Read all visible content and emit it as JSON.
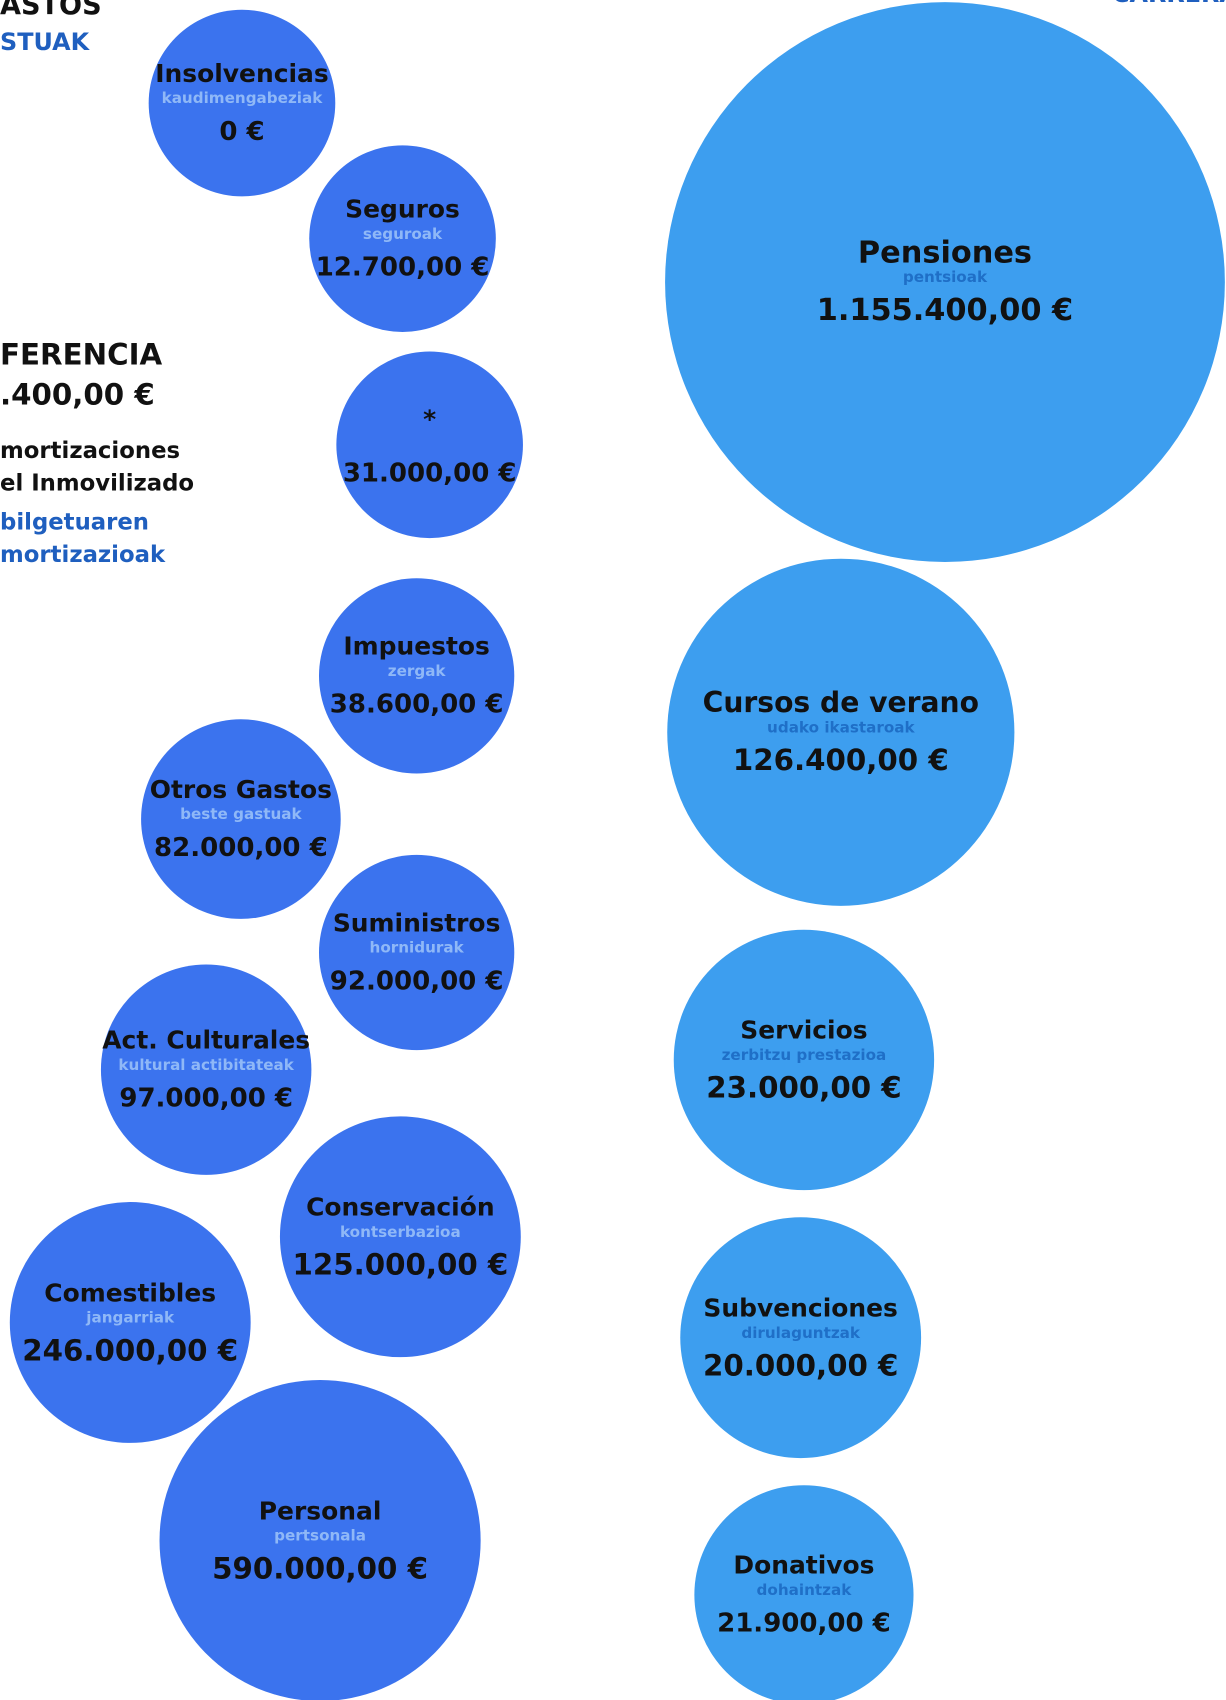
{
  "header": {
    "title": "ASTOS",
    "subtitle": "STUAK",
    "right_title": "CARRERA"
  },
  "side": {
    "heading": "FERENCIA",
    "amount": ".400,00 €",
    "lines": [
      "mortizaciones",
      "el Inmovilizado"
    ],
    "lines_eu": [
      "bilgetuaren",
      "mortizazioak"
    ]
  },
  "expenses": [
    {
      "label": "Insolvencias",
      "sublabel": "kaudimengabeziak",
      "amount": "0 €"
    },
    {
      "label": "Seguros",
      "sublabel": "seguroak",
      "amount": "12.700,00 €"
    },
    {
      "label": "*",
      "amount": "31.000,00 €"
    },
    {
      "label": "Impuestos",
      "sublabel": "zergak",
      "amount": "38.600,00 €"
    },
    {
      "label": "Otros Gastos",
      "sublabel": "beste gastuak",
      "amount": "82.000,00 €"
    },
    {
      "label": "Suministros",
      "sublabel": "hornidurak",
      "amount": "92.000,00 €"
    },
    {
      "label": "Act. Culturales",
      "sublabel": "kultural actibitateak",
      "amount": "97.000,00 €"
    },
    {
      "label": "Conservación",
      "sublabel": "kontserbazioa",
      "amount": "125.000,00 €"
    },
    {
      "label": "Comestibles",
      "sublabel": "jangarriak",
      "amount": "246.000,00 €"
    },
    {
      "label": "Personal",
      "sublabel": "pertsonala",
      "amount": "590.000,00 €"
    }
  ],
  "income": [
    {
      "label": "Pensiones",
      "sublabel": "pentsioak",
      "amount": "1.155.400,00 €"
    },
    {
      "label": "Cursos de verano",
      "sublabel": "udako ikastaroak",
      "amount": "126.400,00 €"
    },
    {
      "label": "Servicios",
      "sublabel": "zerbitzu prestazioa",
      "amount": "23.000,00 €"
    },
    {
      "label": "Subvenciones",
      "sublabel": "dirulaguntzak",
      "amount": "20.000,00 €"
    },
    {
      "label": "Donativos",
      "sublabel": "dohaintzak",
      "amount": "21.900,00 €"
    }
  ]
}
